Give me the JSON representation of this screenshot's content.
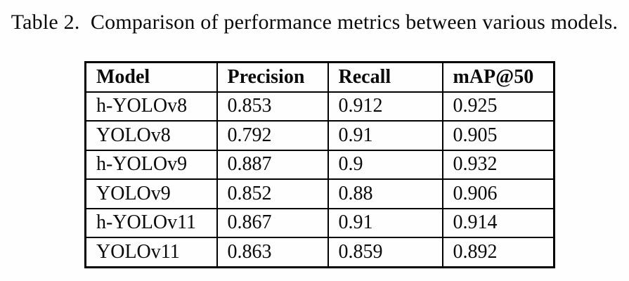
{
  "caption": "Table 2.  Comparison of performance metrics between various models.",
  "table": {
    "headers": [
      "Model",
      "Precision",
      "Recall",
      "mAP@50"
    ],
    "rows": [
      [
        "h-YOLOv8",
        "0.853",
        "0.912",
        "0.925"
      ],
      [
        "YOLOv8",
        "0.792",
        "0.91",
        "0.905"
      ],
      [
        "h-YOLOv9",
        "0.887",
        "0.9",
        "0.932"
      ],
      [
        "YOLOv9",
        "0.852",
        "0.88",
        "0.906"
      ],
      [
        "h-YOLOv11",
        "0.867",
        "0.91",
        "0.914"
      ],
      [
        "YOLOv11",
        "0.863",
        "0.859",
        "0.892"
      ]
    ]
  },
  "colors": {
    "text": "#0a0a0a",
    "border": "#000000",
    "background": "#fefefe"
  }
}
